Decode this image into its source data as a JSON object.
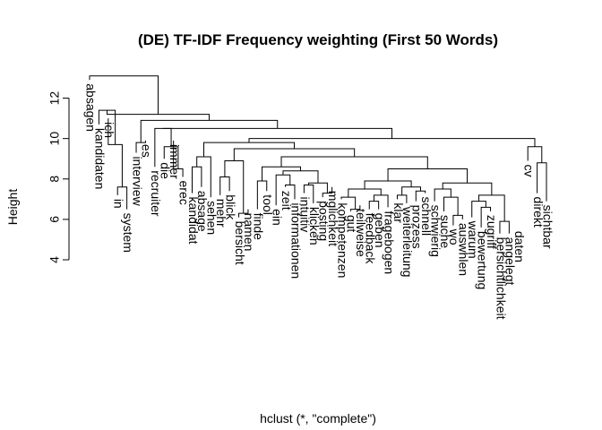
{
  "chart_data": {
    "type": "dendrogram",
    "title": "(DE) TF-IDF Frequency weighting (First 50 Words)",
    "xlabel": "hclust (*, \"complete\")",
    "ylabel": "Height",
    "ylim": [
      4,
      13
    ],
    "y_ticks": [
      4,
      6,
      8,
      10,
      12
    ],
    "leaves": [
      "absagen",
      "kandidaten",
      "ich",
      "in",
      "system",
      "interview",
      "es",
      "recruiter",
      "die",
      "immer",
      "erec",
      "kandidat",
      "absage",
      "sehen",
      "mehr",
      "blick",
      "bersicht",
      "namen",
      "finde",
      "tool",
      "ein",
      "zeit",
      "informationen",
      "intuitiv",
      "klicken",
      "posting",
      "mglichkeit",
      "kompetenzen",
      "gut",
      "teilweise",
      "feedback",
      "geben",
      "fragebogen",
      "klar",
      "weiterleitung",
      "prozess",
      "schnell",
      "schwierig",
      "suche",
      "wo",
      "auswhlen",
      "warum",
      "bewertung",
      "zugriff",
      "bersichtlichkeit",
      "angelegt",
      "daten",
      "cv",
      "direkt",
      "sichtbar"
    ],
    "leaf_height": [
      12.9,
      10.7,
      11.0,
      7.2,
      6.5,
      9.3,
      9.9,
      8.6,
      9.0,
      9.9,
      8.1,
      7.3,
      7.6,
      7.1,
      7.2,
      7.4,
      6.1,
      6.5,
      6.5,
      7.4,
      6.7,
      7.6,
      7.0,
      7.3,
      6.8,
      7.1,
      7.6,
      7.0,
      6.4,
      6.7,
      6.5,
      6.5,
      6.6,
      7.0,
      6.8,
      6.9,
      7.3,
      6.9,
      6.4,
      5.7,
      6.0,
      6.1,
      5.6,
      6.4,
      5.3,
      5.3,
      5.6,
      8.9,
      7.3,
      6.9
    ],
    "merges": [
      [
        -4,
        -5,
        7.6
      ],
      [
        -10,
        -11,
        8.5
      ],
      [
        -17,
        -18,
        6.3
      ],
      [
        -19,
        -20,
        7.9
      ],
      [
        -26,
        -27,
        7.3
      ],
      [
        -29,
        -30,
        6.5
      ],
      [
        -31,
        -32,
        6.9
      ],
      [
        -40,
        -41,
        6.2
      ],
      [
        -45,
        -46,
        5.9
      ],
      [
        -49,
        -50,
        8.8
      ],
      [
        -3,
        1,
        9.7
      ],
      [
        -12,
        -13,
        8.6
      ],
      [
        -15,
        -16,
        8.1
      ],
      [
        -22,
        -23,
        7.7
      ],
      [
        -24,
        -25,
        7.7
      ],
      [
        -28,
        6,
        7.1
      ],
      [
        -33,
        7,
        7.2
      ],
      [
        -34,
        -35,
        7.2
      ],
      [
        -43,
        -44,
        6.6
      ],
      [
        -6,
        -7,
        9.8
      ],
      [
        -9,
        2,
        9.6
      ],
      [
        -14,
        12,
        9.1
      ],
      [
        13,
        3,
        8.9
      ],
      [
        -21,
        14,
        8.2
      ],
      [
        -36,
        -37,
        7.4
      ],
      [
        -39,
        8,
        7.1
      ],
      [
        -42,
        19,
        6.9
      ],
      [
        -48,
        10,
        9.6
      ],
      [
        15,
        5,
        7.8
      ],
      [
        16,
        17,
        7.5
      ],
      [
        18,
        25,
        7.6
      ],
      [
        27,
        9,
        7.2
      ],
      [
        -38,
        26,
        7.5
      ],
      [
        -2,
        11,
        11.4
      ],
      [
        24,
        29,
        8.4
      ],
      [
        30,
        31,
        7.9
      ],
      [
        33,
        32,
        7.8
      ],
      [
        4,
        35,
        8.6
      ],
      [
        36,
        37,
        8.5
      ],
      [
        -8,
        21,
        10.5
      ],
      [
        38,
        39,
        9.1
      ],
      [
        23,
        41,
        9.5
      ],
      [
        22,
        42,
        9.8
      ],
      [
        43,
        28,
        10.0
      ],
      [
        40,
        44,
        10.5
      ],
      [
        20,
        45,
        10.9
      ],
      [
        34,
        46,
        11.2
      ],
      [
        -1,
        47,
        13.1
      ]
    ]
  }
}
